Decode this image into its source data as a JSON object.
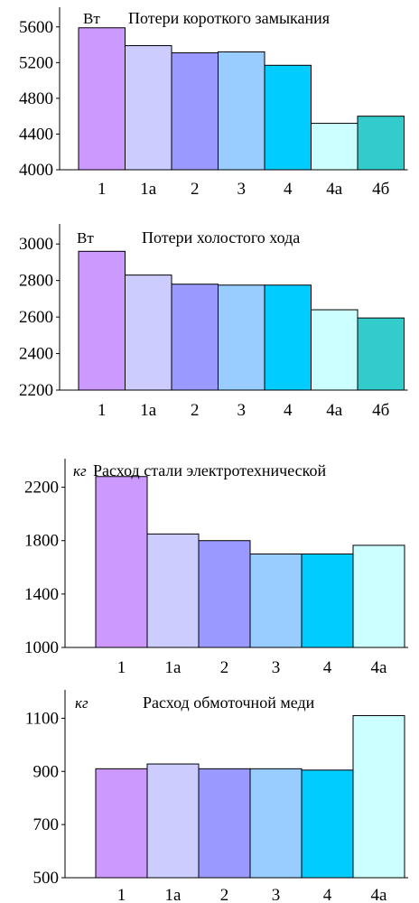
{
  "chart_data": [
    {
      "type": "bar",
      "title": "Потери короткого замыкания",
      "unit": "Вт",
      "unit_italic": false,
      "categories": [
        "1",
        "1а",
        "2",
        "3",
        "4",
        "4а",
        "4б"
      ],
      "values": [
        5590,
        5390,
        5310,
        5320,
        5170,
        4520,
        4600
      ],
      "colors": [
        "#cc99ff",
        "#ccccff",
        "#9999ff",
        "#99ccff",
        "#00ccff",
        "#ccffff",
        "#33cccc"
      ],
      "ylim": [
        4000,
        5800
      ],
      "yticks": [
        4000,
        4400,
        4800,
        5200,
        5600
      ],
      "grid": false
    },
    {
      "type": "bar",
      "title": "Потери холостого хода",
      "unit": "Вт",
      "unit_italic": false,
      "categories": [
        "1",
        "1а",
        "2",
        "3",
        "4",
        "4а",
        "4б"
      ],
      "values": [
        2960,
        2830,
        2780,
        2775,
        2775,
        2640,
        2595
      ],
      "colors": [
        "#cc99ff",
        "#ccccff",
        "#9999ff",
        "#99ccff",
        "#00ccff",
        "#ccffff",
        "#33cccc"
      ],
      "ylim": [
        2200,
        3100
      ],
      "yticks": [
        2200,
        2400,
        2600,
        2800,
        3000
      ],
      "grid": false
    },
    {
      "type": "bar",
      "title": "Расход стали электротехнической",
      "unit": "кг",
      "unit_italic": true,
      "categories": [
        "1",
        "1а",
        "2",
        "3",
        "4",
        "4а"
      ],
      "values": [
        2280,
        1850,
        1800,
        1700,
        1700,
        1765
      ],
      "colors": [
        "#cc99ff",
        "#ccccff",
        "#9999ff",
        "#99ccff",
        "#00ccff",
        "#ccffff"
      ],
      "ylim": [
        1000,
        2400
      ],
      "yticks": [
        1000,
        1400,
        1800,
        2200
      ],
      "grid": false
    },
    {
      "type": "bar",
      "title": "Расход обмоточной меди",
      "unit": "кг",
      "unit_italic": true,
      "categories": [
        "1",
        "1а",
        "2",
        "3",
        "4",
        "4а"
      ],
      "values": [
        910,
        928,
        910,
        910,
        905,
        1110
      ],
      "colors": [
        "#cc99ff",
        "#ccccff",
        "#9999ff",
        "#99ccff",
        "#00ccff",
        "#ccffff"
      ],
      "ylim": [
        500,
        1200
      ],
      "yticks": [
        500,
        700,
        900,
        1100
      ],
      "grid": false
    }
  ]
}
